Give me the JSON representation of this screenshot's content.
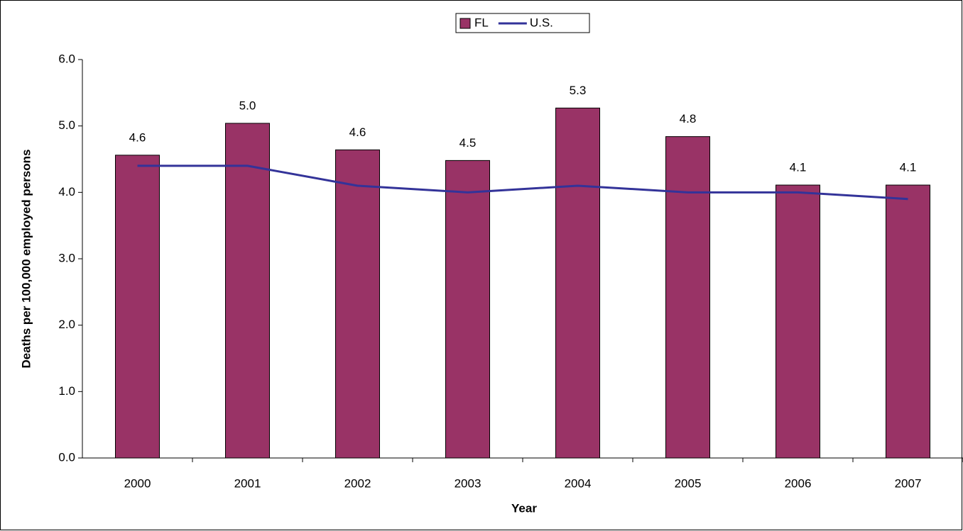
{
  "chart_data": {
    "type": "bar",
    "x_label": "Year",
    "y_label": "Deaths per 100,000 employed persons",
    "categories": [
      "2000",
      "2001",
      "2002",
      "2003",
      "2004",
      "2005",
      "2006",
      "2007"
    ],
    "series": [
      {
        "name": "FL",
        "type": "bar",
        "color": "#993366",
        "values": [
          4.56,
          5.04,
          4.64,
          4.48,
          5.27,
          4.84,
          4.11,
          4.11
        ],
        "value_labels": [
          "4.6",
          "5.0",
          "4.6",
          "4.5",
          "5.3",
          "4.8",
          "4.1",
          "4.1"
        ]
      },
      {
        "name": "U.S.",
        "type": "line",
        "color": "#333399",
        "values": [
          4.4,
          4.4,
          4.1,
          4.0,
          4.1,
          4.0,
          4.0,
          3.9
        ]
      }
    ],
    "ylim": [
      0,
      6
    ],
    "yticks": [
      {
        "value": 0,
        "label": "0.0"
      },
      {
        "value": 1,
        "label": "1.0"
      },
      {
        "value": 2,
        "label": "2.0"
      },
      {
        "value": 3,
        "label": "3.0"
      },
      {
        "value": 4,
        "label": "4.0"
      },
      {
        "value": 5,
        "label": "5.0"
      },
      {
        "value": 6,
        "label": "6.0"
      }
    ],
    "legend": "top"
  }
}
